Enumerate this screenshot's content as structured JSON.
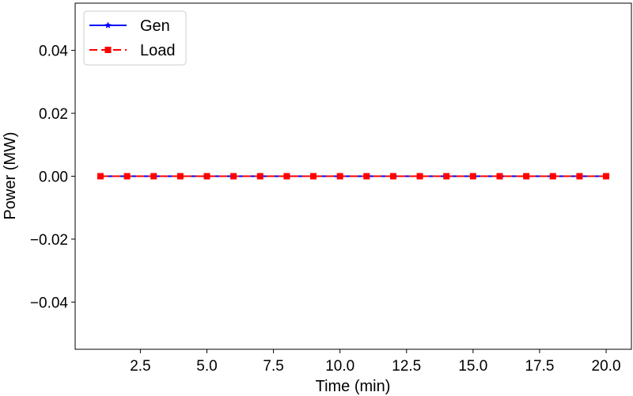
{
  "chart_data": {
    "type": "line",
    "xlabel": "Time (min)",
    "ylabel": "Power (MW)",
    "xlim": [
      0.05,
      20.95
    ],
    "ylim": [
      -0.055,
      0.055
    ],
    "xticks": [
      2.5,
      5.0,
      7.5,
      10.0,
      12.5,
      15.0,
      17.5,
      20.0
    ],
    "xtick_labels": [
      "2.5",
      "5.0",
      "7.5",
      "10.0",
      "12.5",
      "15.0",
      "17.5",
      "20.0"
    ],
    "yticks": [
      -0.04,
      -0.02,
      0.0,
      0.02,
      0.04
    ],
    "ytick_labels": [
      "−0.04",
      "−0.02",
      "0.00",
      "0.02",
      "0.04"
    ],
    "grid": false,
    "legend_position": "top-left",
    "x": [
      1,
      2,
      3,
      4,
      5,
      6,
      7,
      8,
      9,
      10,
      11,
      12,
      13,
      14,
      15,
      16,
      17,
      18,
      19,
      20
    ],
    "series": [
      {
        "name": "Gen",
        "values": [
          0,
          0,
          0,
          0,
          0,
          0,
          0,
          0,
          0,
          0,
          0,
          0,
          0,
          0,
          0,
          0,
          0,
          0,
          0,
          0
        ],
        "color": "#0000ff",
        "line_style": "solid",
        "marker": "star"
      },
      {
        "name": "Load",
        "values": [
          0,
          0,
          0,
          0,
          0,
          0,
          0,
          0,
          0,
          0,
          0,
          0,
          0,
          0,
          0,
          0,
          0,
          0,
          0,
          0
        ],
        "color": "#ff0000",
        "line_style": "dashed",
        "marker": "square"
      }
    ]
  }
}
